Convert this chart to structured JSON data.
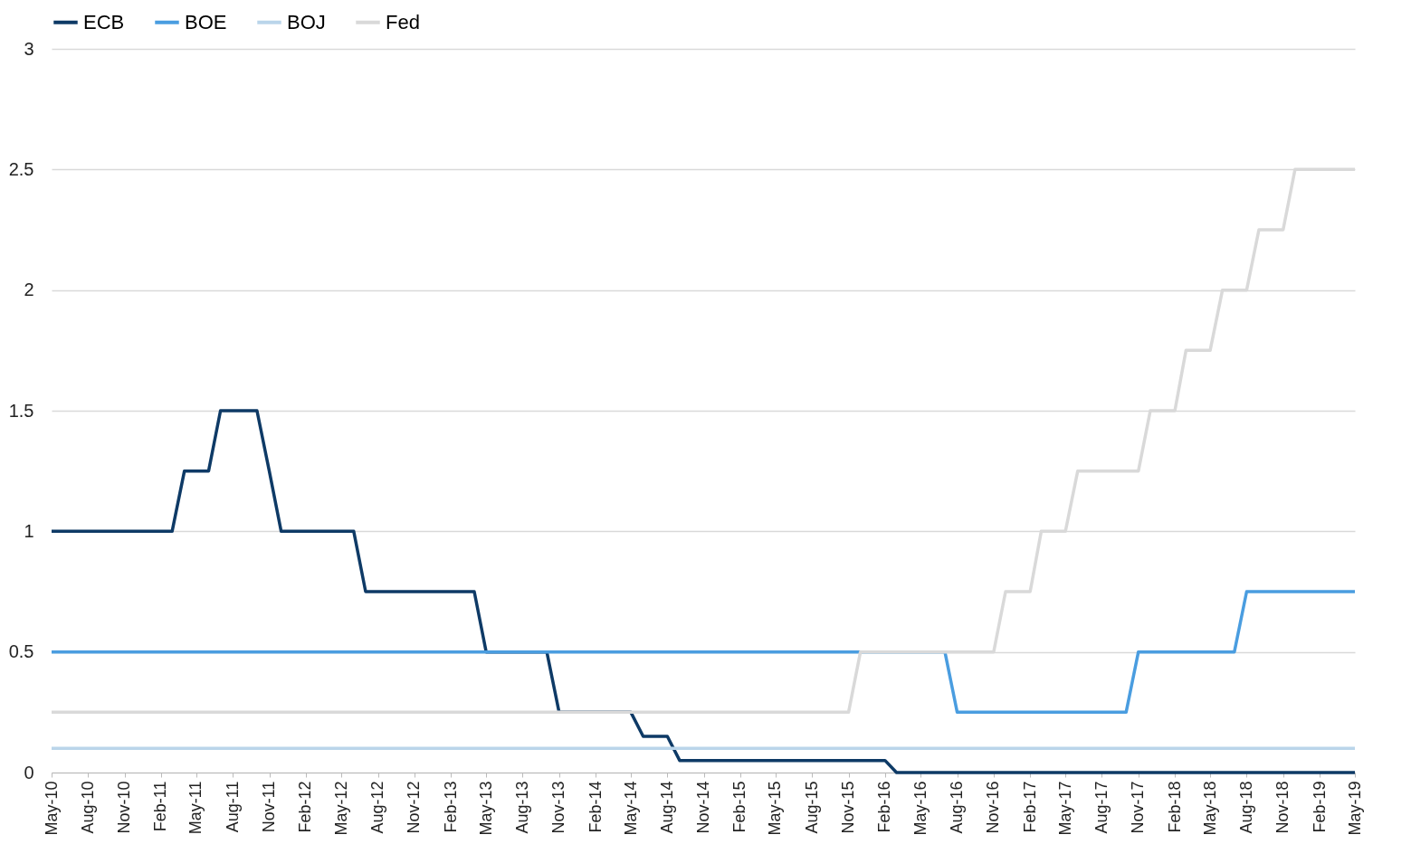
{
  "chart_data": {
    "type": "line",
    "series": [
      {
        "name": "ECB",
        "color": "#0e3a66",
        "x": [
          "2010-05",
          "2011-03",
          "2011-04",
          "2011-06",
          "2011-07",
          "2011-10",
          "2011-11",
          "2011-12",
          "2012-06",
          "2012-07",
          "2013-04",
          "2013-05",
          "2013-10",
          "2013-11",
          "2014-05",
          "2014-06",
          "2014-08",
          "2014-09",
          "2016-02",
          "2016-03",
          "2019-05"
        ],
        "values": [
          1,
          1,
          1.25,
          1.25,
          1.5,
          1.5,
          1.25,
          1,
          1,
          0.75,
          0.75,
          0.5,
          0.5,
          0.25,
          0.25,
          0.15,
          0.15,
          0.05,
          0.05,
          0,
          0
        ]
      },
      {
        "name": "BOE",
        "color": "#4a9de0",
        "x": [
          "2010-05",
          "2016-07",
          "2016-08",
          "2017-10",
          "2017-11",
          "2018-07",
          "2018-08",
          "2019-05"
        ],
        "values": [
          0.5,
          0.5,
          0.25,
          0.25,
          0.5,
          0.5,
          0.75,
          0.75
        ]
      },
      {
        "name": "BOJ",
        "color": "#bad5ea",
        "x": [
          "2010-05",
          "2019-05"
        ],
        "values": [
          0.1,
          0.1
        ]
      },
      {
        "name": "Fed",
        "color": "#d9d9d9",
        "x": [
          "2010-05",
          "2015-11",
          "2015-12",
          "2016-11",
          "2016-12",
          "2017-02",
          "2017-03",
          "2017-05",
          "2017-06",
          "2017-11",
          "2017-12",
          "2018-02",
          "2018-03",
          "2018-05",
          "2018-06",
          "2018-08",
          "2018-09",
          "2018-11",
          "2018-12",
          "2019-05"
        ],
        "values": [
          0.25,
          0.25,
          0.5,
          0.5,
          0.75,
          0.75,
          1,
          1,
          1.25,
          1.25,
          1.5,
          1.5,
          1.75,
          1.75,
          2,
          2,
          2.25,
          2.25,
          2.5,
          2.5
        ]
      }
    ],
    "xlim": [
      "2010-05",
      "2019-05"
    ],
    "xticks": [
      {
        "value": "2010-05",
        "label": "May-10"
      },
      {
        "value": "2010-08",
        "label": "Aug-10"
      },
      {
        "value": "2010-11",
        "label": "Nov-10"
      },
      {
        "value": "2011-02",
        "label": "Feb-11"
      },
      {
        "value": "2011-05",
        "label": "May-11"
      },
      {
        "value": "2011-08",
        "label": "Aug-11"
      },
      {
        "value": "2011-11",
        "label": "Nov-11"
      },
      {
        "value": "2012-02",
        "label": "Feb-12"
      },
      {
        "value": "2012-05",
        "label": "May-12"
      },
      {
        "value": "2012-08",
        "label": "Aug-12"
      },
      {
        "value": "2012-11",
        "label": "Nov-12"
      },
      {
        "value": "2013-02",
        "label": "Feb-13"
      },
      {
        "value": "2013-05",
        "label": "May-13"
      },
      {
        "value": "2013-08",
        "label": "Aug-13"
      },
      {
        "value": "2013-11",
        "label": "Nov-13"
      },
      {
        "value": "2014-02",
        "label": "Feb-14"
      },
      {
        "value": "2014-05",
        "label": "May-14"
      },
      {
        "value": "2014-08",
        "label": "Aug-14"
      },
      {
        "value": "2014-11",
        "label": "Nov-14"
      },
      {
        "value": "2015-02",
        "label": "Feb-15"
      },
      {
        "value": "2015-05",
        "label": "May-15"
      },
      {
        "value": "2015-08",
        "label": "Aug-15"
      },
      {
        "value": "2015-11",
        "label": "Nov-15"
      },
      {
        "value": "2016-02",
        "label": "Feb-16"
      },
      {
        "value": "2016-05",
        "label": "May-16"
      },
      {
        "value": "2016-08",
        "label": "Aug-16"
      },
      {
        "value": "2016-11",
        "label": "Nov-16"
      },
      {
        "value": "2017-02",
        "label": "Feb-17"
      },
      {
        "value": "2017-05",
        "label": "May-17"
      },
      {
        "value": "2017-08",
        "label": "Aug-17"
      },
      {
        "value": "2017-11",
        "label": "Nov-17"
      },
      {
        "value": "2018-02",
        "label": "Feb-18"
      },
      {
        "value": "2018-05",
        "label": "May-18"
      },
      {
        "value": "2018-08",
        "label": "Aug-18"
      },
      {
        "value": "2018-11",
        "label": "Nov-18"
      },
      {
        "value": "2019-02",
        "label": "Feb-19"
      },
      {
        "value": "2019-05",
        "label": "May-19"
      }
    ],
    "ylim": [
      0,
      3
    ],
    "yticks": [
      0,
      0.5,
      1,
      1.5,
      2,
      2.5,
      3
    ],
    "grid": "y",
    "legend": "top",
    "marker": "none",
    "line_style": "solid"
  }
}
